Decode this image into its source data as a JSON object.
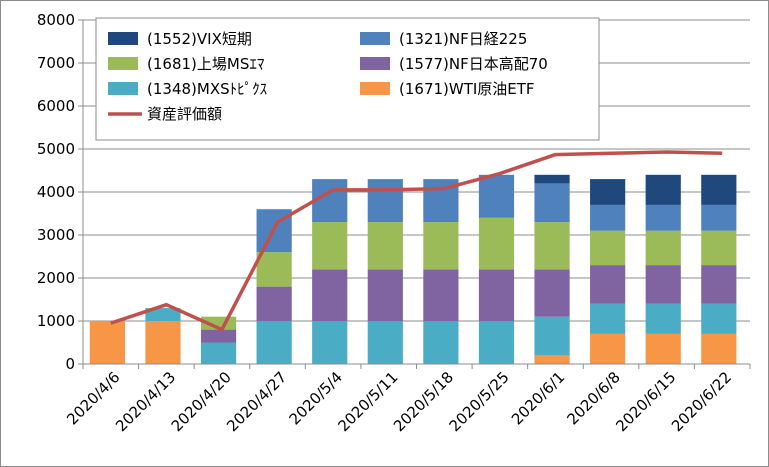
{
  "chart_data": {
    "type": "bar",
    "categories": [
      "2020/4/6",
      "2020/4/13",
      "2020/4/20",
      "2020/4/27",
      "2020/5/4",
      "2020/5/11",
      "2020/5/18",
      "2020/5/25",
      "2020/6/1",
      "2020/6/8",
      "2020/6/15",
      "2020/6/22"
    ],
    "ylim": [
      0,
      8000
    ],
    "yticks": [
      0,
      1000,
      2000,
      3000,
      4000,
      5000,
      6000,
      7000,
      8000
    ],
    "grid": true,
    "legend_position": "top",
    "series": [
      {
        "name": "(1671)WTI原油ETF",
        "kind": "bar",
        "color": "#F79646",
        "values": [
          1000,
          1000,
          0,
          0,
          0,
          0,
          0,
          0,
          200,
          700,
          700,
          700
        ]
      },
      {
        "name": "(1348)MXSﾄﾋﾟｸｽ",
        "kind": "bar",
        "color": "#4BACC6",
        "values": [
          0,
          300,
          500,
          1000,
          1000,
          1000,
          1000,
          1000,
          900,
          700,
          700,
          700
        ]
      },
      {
        "name": "(1577)NF日本高配70",
        "kind": "bar",
        "color": "#8064A2",
        "values": [
          0,
          0,
          300,
          800,
          1200,
          1200,
          1200,
          1200,
          1100,
          900,
          900,
          900
        ]
      },
      {
        "name": "(1681)上場MSｴﾏ",
        "kind": "bar",
        "color": "#9BBB59",
        "values": [
          0,
          0,
          300,
          800,
          1100,
          1100,
          1100,
          1200,
          1100,
          800,
          800,
          800
        ]
      },
      {
        "name": "(1321)NF日経225",
        "kind": "bar",
        "color": "#4F81BD",
        "values": [
          0,
          0,
          0,
          1000,
          1000,
          1000,
          1000,
          1000,
          900,
          600,
          600,
          600
        ]
      },
      {
        "name": "(1552)VIX短期",
        "kind": "bar",
        "color": "#1F497D",
        "values": [
          0,
          0,
          0,
          0,
          0,
          0,
          0,
          0,
          200,
          600,
          700,
          700
        ]
      },
      {
        "name": "資産評価額",
        "kind": "line",
        "color": "#C0504D",
        "values": [
          950,
          1380,
          800,
          3300,
          4050,
          4050,
          4080,
          4430,
          4870,
          4900,
          4930,
          4900
        ]
      }
    ],
    "legend_order": [
      "(1552)VIX短期",
      "(1321)NF日経225",
      "(1681)上場MSｴﾏ",
      "(1577)NF日本高配70",
      "(1348)MXSﾄﾋﾟｸｽ",
      "(1671)WTI原油ETF",
      "資産評価額"
    ]
  }
}
